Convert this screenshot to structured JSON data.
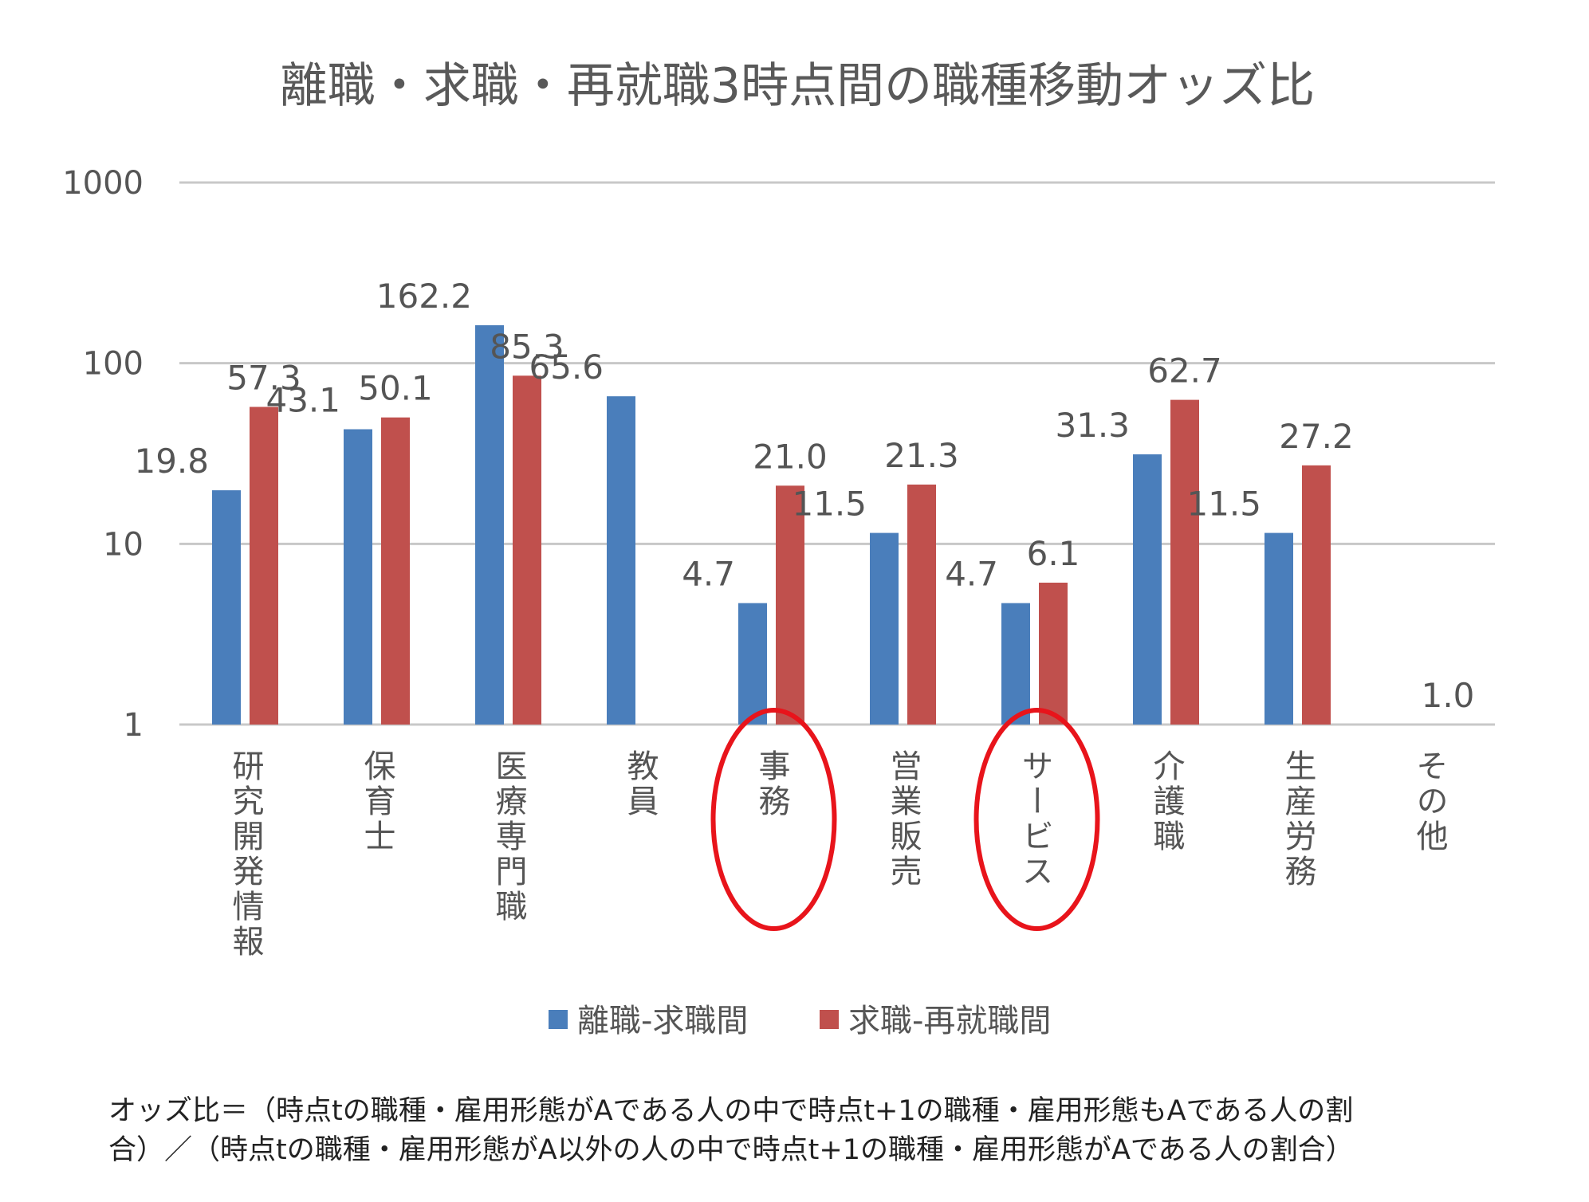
{
  "chart_data": {
    "type": "bar",
    "title": "離職・求職・再就職3時点間の職種移動オッズ比",
    "yscale": "log",
    "ylim": [
      1,
      1000
    ],
    "yticks": [
      "1",
      "10",
      "100",
      "1000"
    ],
    "ytick_values": [
      1,
      10,
      100,
      1000
    ],
    "grid": true,
    "legend_position": "bottom",
    "categories": [
      "研究開発情報",
      "保育士",
      "医療専門職",
      "教員",
      "事務",
      "営業販売",
      "サービス",
      "介護職",
      "生産労務",
      "その他"
    ],
    "series": [
      {
        "name": "離職-求職間",
        "color": "#4a7ebb",
        "values": [
          19.8,
          43.1,
          162.2,
          65.6,
          4.7,
          11.5,
          4.7,
          31.3,
          11.5,
          null
        ],
        "labels": [
          "19.8",
          "43.1",
          "162.2",
          "65.6",
          "4.7",
          "11.5",
          "4.7",
          "31.3",
          "11.5",
          ""
        ]
      },
      {
        "name": "求職-再就職間",
        "color": "#c0504d",
        "values": [
          57.3,
          50.1,
          85.3,
          null,
          21.0,
          21.3,
          6.1,
          62.7,
          27.2,
          1.0
        ],
        "labels": [
          "57.3",
          "50.1",
          "85.3",
          "",
          "21.0",
          "21.3",
          "6.1",
          "62.7",
          "27.2",
          "1.0"
        ]
      }
    ],
    "highlighted_categories": [
      "事務",
      "サービス"
    ],
    "highlight_color": "#e8141b"
  },
  "footnote": {
    "line1": "オッズ比＝（時点tの職種・雇用形態がAである人の中で時点t+1の職種・雇用形態もAである人の割",
    "line2": "合）／（時点tの職種・雇用形態がA以外の人の中で時点t+1の職種・雇用形態がAである人の割合）"
  }
}
